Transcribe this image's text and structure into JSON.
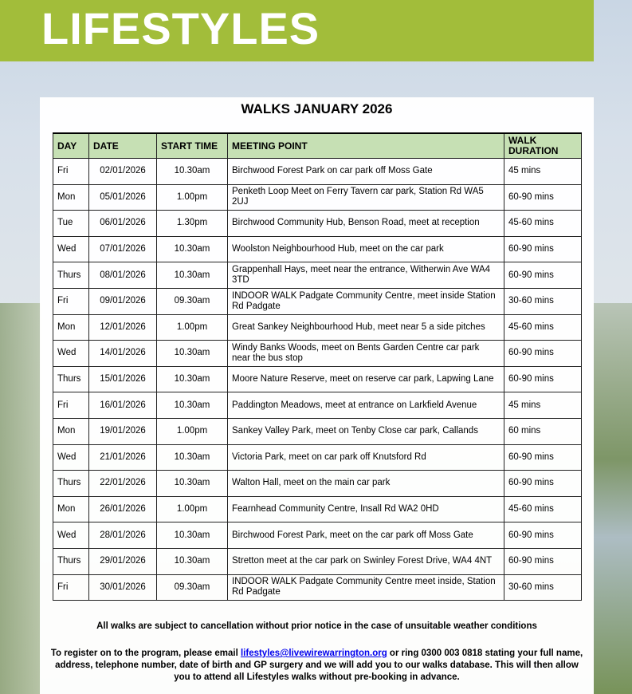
{
  "banner": {
    "title": "LIFESTYLES",
    "color": "#a2bd3a"
  },
  "page_title": "WALKS JANUARY 2026",
  "table": {
    "header_color": "#c6e0b4",
    "headers": [
      "DAY",
      "DATE",
      "START TIME",
      "MEETING POINT",
      "WALK DURATION"
    ],
    "rows": [
      [
        "Fri",
        "02/01/2026",
        "10.30am",
        "Birchwood Forest Park on car park off Moss Gate",
        "45 mins"
      ],
      [
        "Mon",
        "05/01/2026",
        "1.00pm",
        "Penketh Loop Meet on Ferry Tavern car park, Station Rd WA5 2UJ",
        "60-90 mins"
      ],
      [
        "Tue",
        "06/01/2026",
        "1.30pm",
        "Birchwood Community Hub, Benson Road, meet at reception",
        "45-60 mins"
      ],
      [
        "Wed",
        "07/01/2026",
        "10.30am",
        "Woolston Neighbourhood Hub, meet on the car park",
        "60-90 mins"
      ],
      [
        "Thurs",
        "08/01/2026",
        "10.30am",
        "Grappenhall Hays, meet near the entrance, Witherwin Ave WA4 3TD",
        "60-90 mins"
      ],
      [
        "Fri",
        "09/01/2026",
        "09.30am",
        "INDOOR WALK Padgate Community Centre, meet inside Station Rd Padgate",
        "30-60 mins"
      ],
      [
        "Mon",
        "12/01/2026",
        "1.00pm",
        "Great Sankey Neighbourhood Hub, meet near 5 a side pitches",
        "45-60 mins"
      ],
      [
        "Wed",
        "14/01/2026",
        "10.30am",
        "Windy Banks Woods, meet on Bents Garden Centre car park near the bus stop",
        "60-90 mins"
      ],
      [
        "Thurs",
        "15/01/2026",
        "10.30am",
        "Moore Nature Reserve, meet on reserve car park, Lapwing Lane",
        "60-90 mins"
      ],
      [
        "Fri",
        "16/01/2026",
        "10.30am",
        "Paddington Meadows, meet at entrance on Larkfield Avenue",
        "45 mins"
      ],
      [
        "Mon",
        "19/01/2026",
        "1.00pm",
        "Sankey Valley Park, meet on Tenby Close car park, Callands",
        "60 mins"
      ],
      [
        "Wed",
        "21/01/2026",
        "10.30am",
        "Victoria Park, meet on car park off Knutsford Rd",
        "60-90 mins"
      ],
      [
        "Thurs",
        "22/01/2026",
        "10.30am",
        "Walton Hall, meet on the main car park",
        "60-90 mins"
      ],
      [
        "Mon",
        "26/01/2026",
        "1.00pm",
        "Fearnhead Community Centre, Insall Rd WA2 0HD",
        "45-60 mins"
      ],
      [
        "Wed",
        "28/01/2026",
        "10.30am",
        "Birchwood Forest Park, meet on the car park off Moss Gate",
        "60-90 mins"
      ],
      [
        "Thurs",
        "29/01/2026",
        "10.30am",
        "Stretton meet at the car park on Swinley Forest Drive, WA4 4NT",
        "60-90 mins"
      ],
      [
        "Fri",
        "30/01/2026",
        "09.30am",
        "INDOOR WALK Padgate Community Centre meet inside, Station Rd Padgate",
        "30-60 mins"
      ]
    ]
  },
  "notice": "All walks are subject to cancellation without prior notice in the case of unsuitable weather conditions",
  "register": {
    "before": "To register on to the program, please email ",
    "email": "lifestyles@livewirewarrington.org",
    "after": " or ring 0300 003 0818 stating your full name, address, telephone number, date of birth and GP surgery and we will add you to our walks database.  This will then allow you to attend all Lifestyles walks without pre-booking in advance."
  }
}
